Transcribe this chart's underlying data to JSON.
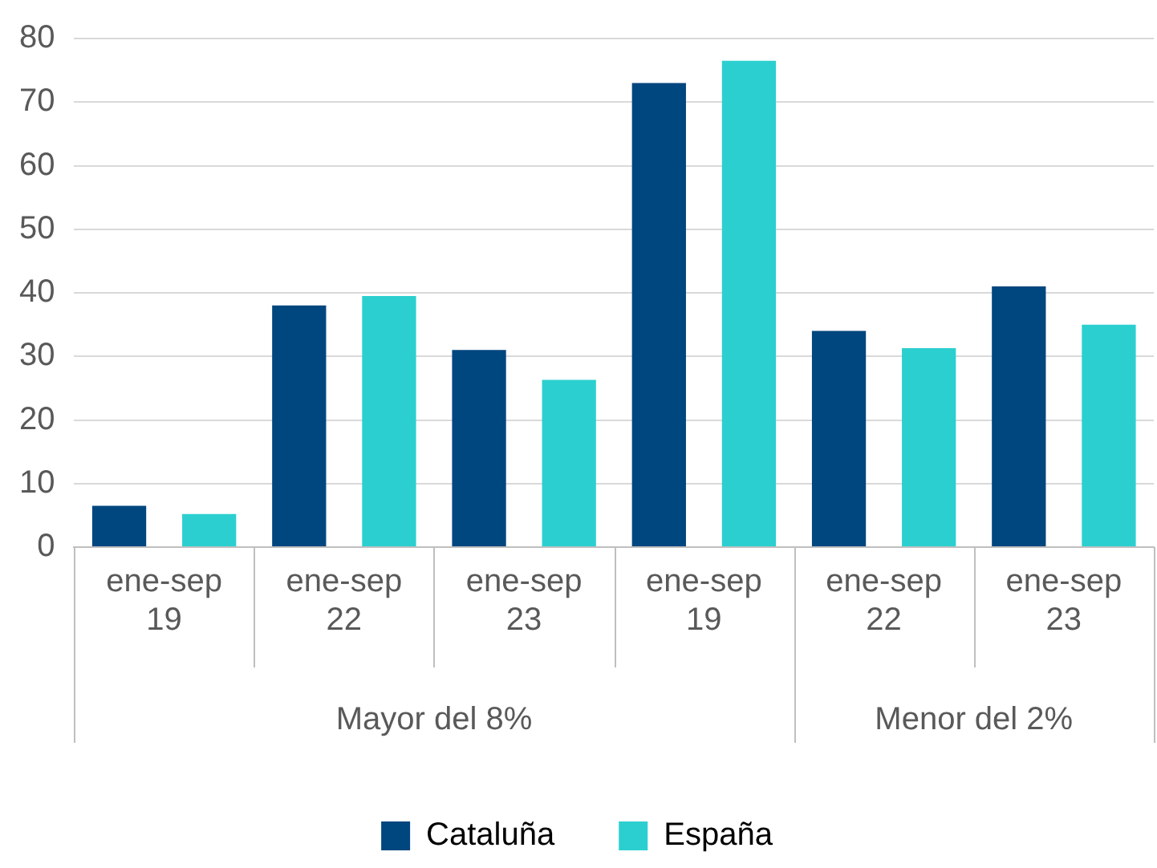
{
  "chart_data": {
    "type": "bar",
    "categories": [
      "ene-sep 19",
      "ene-sep 22",
      "ene-sep 23",
      "ene-sep 19",
      "ene-sep 22",
      "ene-sep 23"
    ],
    "series": [
      {
        "name": "Cataluña",
        "color": "#00467f",
        "values": [
          6.5,
          38,
          31,
          73,
          34,
          41
        ]
      },
      {
        "name": "España",
        "color": "#2ccfcf",
        "values": [
          5.2,
          39.5,
          26.3,
          76.5,
          31.3,
          35
        ]
      }
    ],
    "annotations": [
      "Mayor del 8%",
      "Menor del 2%"
    ],
    "ylim": [
      0,
      80
    ],
    "yticks": [
      0,
      10,
      20,
      30,
      40,
      50,
      60,
      70,
      80
    ],
    "grid": "y",
    "legend": "bottom"
  }
}
